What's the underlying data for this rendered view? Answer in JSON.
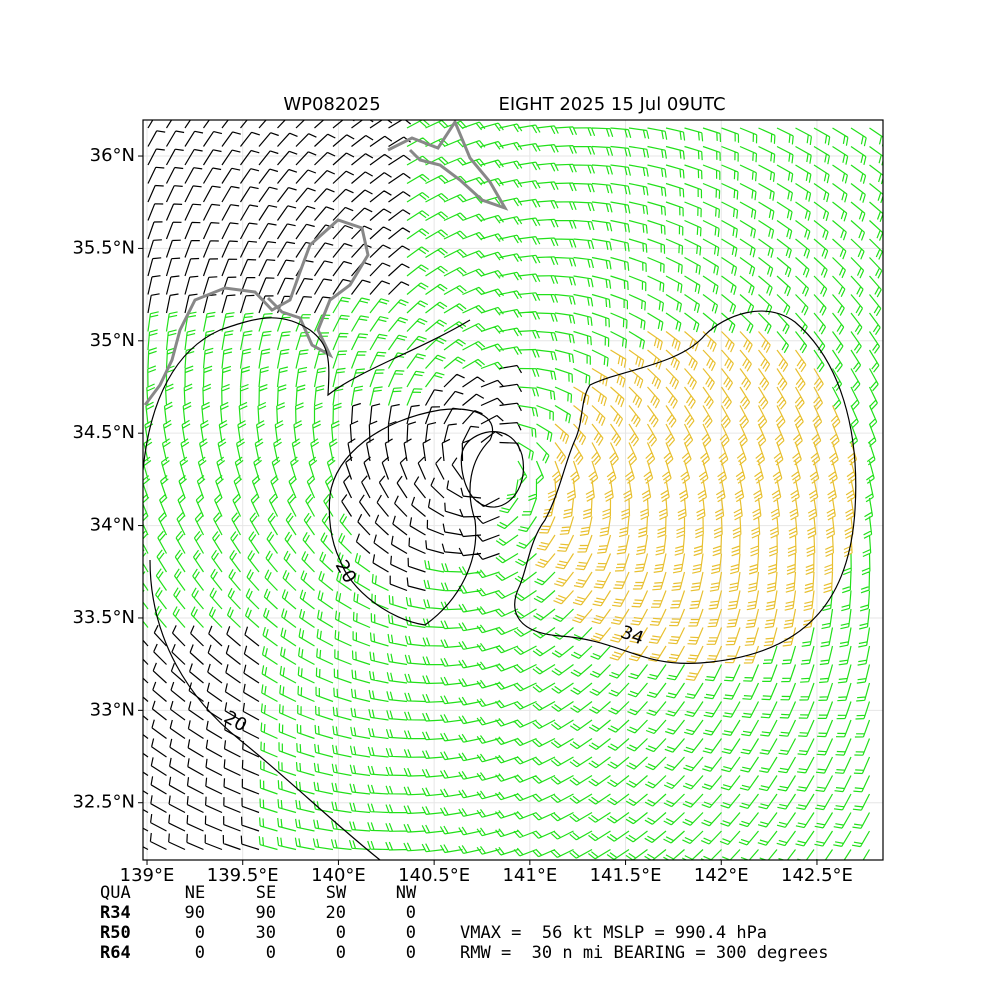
{
  "chart_data": {
    "type": "barb-map",
    "title_left": "WP082025",
    "title_right": "EIGHT 2025 15 Jul 09UTC",
    "xlim": [
      138.979,
      142.845
    ],
    "ylim": [
      32.19,
      36.195
    ],
    "xticks": [
      {
        "value": 139,
        "label": "139°E"
      },
      {
        "value": 139.5,
        "label": "139.5°E"
      },
      {
        "value": 140,
        "label": "140°E"
      },
      {
        "value": 140.5,
        "label": "140.5°E"
      },
      {
        "value": 141,
        "label": "141°E"
      },
      {
        "value": 141.5,
        "label": "141.5°E"
      },
      {
        "value": 142,
        "label": "142°E"
      },
      {
        "value": 142.5,
        "label": "142.5°E"
      }
    ],
    "yticks": [
      {
        "value": 32.5,
        "label": "32.5°N"
      },
      {
        "value": 33,
        "label": "33°N"
      },
      {
        "value": 33.5,
        "label": "33.5°N"
      },
      {
        "value": 34,
        "label": "34°N"
      },
      {
        "value": 34.5,
        "label": "34.5°N"
      },
      {
        "value": 35,
        "label": "35°N"
      },
      {
        "value": 35.5,
        "label": "35.5°N"
      },
      {
        "value": 36,
        "label": "36°N"
      }
    ],
    "grid": true,
    "contour_labels": [
      20,
      20,
      34
    ]
  },
  "table": {
    "header": [
      "QUA",
      "NE",
      "SE",
      "SW",
      "NW"
    ],
    "rows": [
      [
        "R34",
        90,
        90,
        20,
        0
      ],
      [
        "R50",
        0,
        30,
        0,
        0
      ],
      [
        "R64",
        0,
        0,
        0,
        0
      ]
    ]
  },
  "stats": [
    "VMAX =  56 kt MSLP = 990.4 hPa",
    "RMW =  30 n mi BEARING = 300 degrees"
  ]
}
